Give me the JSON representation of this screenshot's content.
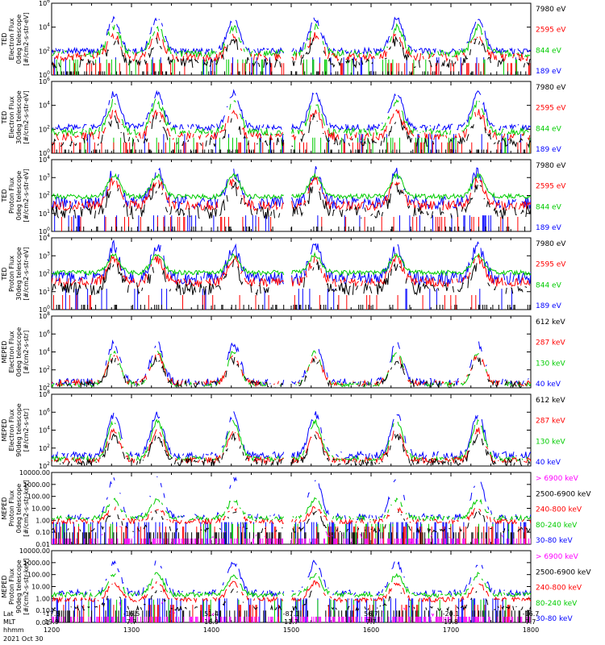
{
  "chart_data": [
    {
      "type": "line",
      "log_y": true,
      "ylabel": [
        "TED",
        "Electron Flux",
        "0deg telescope",
        "[#/cm2-s-str-eV]"
      ],
      "yticks": [
        "10^6",
        "10^4",
        "10^2",
        "10^0"
      ],
      "ylim": [
        1,
        1000000
      ],
      "legend": [
        {
          "name": "7980 eV",
          "color": "#000000"
        },
        {
          "name": "2595 eV",
          "color": "#ff0000"
        },
        {
          "name": "844 eV",
          "color": "#00cc00"
        },
        {
          "name": "189 eV",
          "color": "#0000ff"
        }
      ],
      "series": [
        {
          "name": "189 eV",
          "color": "#0000ff",
          "base": 100,
          "peak": 50000,
          "floor": 30,
          "noise": 0.5,
          "dropout": 0.12
        },
        {
          "name": "844 eV",
          "color": "#00cc00",
          "base": 60,
          "peak": 10000,
          "floor": 20,
          "noise": 0.6,
          "dropout": 0.18
        },
        {
          "name": "2595 eV",
          "color": "#ff0000",
          "base": 30,
          "peak": 2000,
          "floor": 10,
          "noise": 0.7,
          "dropout": 0.25
        },
        {
          "name": "7980 eV",
          "color": "#000000",
          "base": 10,
          "peak": 700,
          "floor": 2,
          "noise": 0.8,
          "dropout": 0.35
        }
      ]
    },
    {
      "type": "line",
      "log_y": true,
      "ylabel": [
        "TED",
        "Electron Flux",
        "30deg telescope",
        "[#/cm2-s-str-eV]"
      ],
      "yticks": [
        "10^6",
        "10^4",
        "10^2",
        "10^0"
      ],
      "ylim": [
        1,
        1000000
      ],
      "legend": [
        {
          "name": "7980 eV",
          "color": "#000000"
        },
        {
          "name": "2595 eV",
          "color": "#ff0000"
        },
        {
          "name": "844 eV",
          "color": "#00cc00"
        },
        {
          "name": "189 eV",
          "color": "#0000ff"
        }
      ],
      "series": [
        {
          "name": "189 eV",
          "color": "#0000ff",
          "base": 150,
          "peak": 100000,
          "floor": 40,
          "noise": 0.5,
          "dropout": 0.1
        },
        {
          "name": "844 eV",
          "color": "#00cc00",
          "base": 60,
          "peak": 20000,
          "floor": 20,
          "noise": 0.6,
          "dropout": 0.18
        },
        {
          "name": "2595 eV",
          "color": "#ff0000",
          "base": 25,
          "peak": 3000,
          "floor": 8,
          "noise": 0.7,
          "dropout": 0.28
        },
        {
          "name": "7980 eV",
          "color": "#000000",
          "base": 8,
          "peak": 800,
          "floor": 2,
          "noise": 0.8,
          "dropout": 0.38
        }
      ]
    },
    {
      "type": "line",
      "log_y": true,
      "ylabel": [
        "TED",
        "Proton Flux",
        "0deg telescope",
        "[#/cm2-s-str-eV]"
      ],
      "yticks": [
        "10^4",
        "10^3",
        "10^2",
        "10^1",
        "10^0"
      ],
      "ylim": [
        1,
        30000
      ],
      "legend": [
        {
          "name": "7980 eV",
          "color": "#000000"
        },
        {
          "name": "2595 eV",
          "color": "#ff0000"
        },
        {
          "name": "844 eV",
          "color": "#00cc00"
        },
        {
          "name": "189 eV",
          "color": "#0000ff"
        }
      ],
      "series": [
        {
          "name": "189 eV",
          "color": "#0000ff",
          "base": 60,
          "peak": 5000,
          "floor": 10,
          "noise": 0.8,
          "dropout": 0.15
        },
        {
          "name": "844 eV",
          "color": "#00cc00",
          "base": 150,
          "peak": 3000,
          "floor": 60,
          "noise": 0.3,
          "dropout": 0.0
        },
        {
          "name": "2595 eV",
          "color": "#ff0000",
          "base": 40,
          "peak": 1500,
          "floor": 8,
          "noise": 0.6,
          "dropout": 0.15
        },
        {
          "name": "7980 eV",
          "color": "#000000",
          "base": 15,
          "peak": 600,
          "floor": 2,
          "noise": 0.8,
          "dropout": 0.3
        }
      ]
    },
    {
      "type": "line",
      "log_y": true,
      "ylabel": [
        "TED",
        "Proton Flux",
        "30deg telescope",
        "[#/cm2-s-str-eV]"
      ],
      "yticks": [
        "10^4",
        "10^3",
        "10^2",
        "10^1",
        "10^0"
      ],
      "ylim": [
        1,
        30000
      ],
      "legend": [
        {
          "name": "7980 eV",
          "color": "#000000"
        },
        {
          "name": "2595 eV",
          "color": "#ff0000"
        },
        {
          "name": "844 eV",
          "color": "#00cc00"
        },
        {
          "name": "189 eV",
          "color": "#0000ff"
        }
      ],
      "series": [
        {
          "name": "189 eV",
          "color": "#0000ff",
          "base": 90,
          "peak": 8000,
          "floor": 20,
          "noise": 0.8,
          "dropout": 0.1
        },
        {
          "name": "844 eV",
          "color": "#00cc00",
          "base": 200,
          "peak": 2500,
          "floor": 80,
          "noise": 0.3,
          "dropout": 0.0
        },
        {
          "name": "2595 eV",
          "color": "#ff0000",
          "base": 50,
          "peak": 1500,
          "floor": 8,
          "noise": 0.6,
          "dropout": 0.15
        },
        {
          "name": "7980 eV",
          "color": "#000000",
          "base": 20,
          "peak": 600,
          "floor": 2,
          "noise": 0.8,
          "dropout": 0.3
        }
      ]
    },
    {
      "type": "line",
      "log_y": true,
      "ylabel": [
        "MEPED",
        "Electron Flux",
        "0deg telescope",
        "[#/cm2-s-str]"
      ],
      "yticks": [
        "10^8",
        "10^6",
        "10^4",
        "10^2",
        "10^2"
      ],
      "ylim": [
        100,
        100000000
      ],
      "legend": [
        {
          "name": "612 keV",
          "color": "#000000"
        },
        {
          "name": "287 keV",
          "color": "#ff0000"
        },
        {
          "name": "130 keV",
          "color": "#00cc00"
        },
        {
          "name": "40 keV",
          "color": "#0000ff"
        }
      ],
      "series": [
        {
          "name": "40 keV",
          "color": "#0000ff",
          "base": 300,
          "peak": 500000,
          "floor": 100,
          "noise": 0.6,
          "dropout": 0.3
        },
        {
          "name": "130 keV",
          "color": "#00cc00",
          "base": 200,
          "peak": 100000,
          "floor": 100,
          "noise": 0.4,
          "dropout": 0.3
        },
        {
          "name": "287 keV",
          "color": "#ff0000",
          "base": 250,
          "peak": 50000,
          "floor": 100,
          "noise": 0.5,
          "dropout": 0.3
        },
        {
          "name": "612 keV",
          "color": "#000000",
          "base": 200,
          "peak": 20000,
          "floor": 100,
          "noise": 0.6,
          "dropout": 0.4
        }
      ]
    },
    {
      "type": "line",
      "log_y": true,
      "ylabel": [
        "MEPED",
        "Electron Flux",
        "90deg telescope",
        "[#/cm2-s-str]"
      ],
      "yticks": [
        "10^8",
        "10^6",
        "10^4",
        "10^2",
        "10^2"
      ],
      "ylim": [
        100,
        100000000
      ],
      "legend": [
        {
          "name": "612 keV",
          "color": "#000000"
        },
        {
          "name": "287 keV",
          "color": "#ff0000"
        },
        {
          "name": "130 keV",
          "color": "#00cc00"
        },
        {
          "name": "40 keV",
          "color": "#0000ff"
        }
      ],
      "series": [
        {
          "name": "40 keV",
          "color": "#0000ff",
          "base": 800,
          "peak": 2000000,
          "floor": 100,
          "noise": 0.6,
          "dropout": 0.15
        },
        {
          "name": "130 keV",
          "color": "#00cc00",
          "base": 400,
          "peak": 500000,
          "floor": 100,
          "noise": 0.4,
          "dropout": 0.15
        },
        {
          "name": "287 keV",
          "color": "#ff0000",
          "base": 300,
          "peak": 100000,
          "floor": 100,
          "noise": 0.5,
          "dropout": 0.2
        },
        {
          "name": "612 keV",
          "color": "#000000",
          "base": 200,
          "peak": 30000,
          "floor": 100,
          "noise": 0.6,
          "dropout": 0.3
        }
      ]
    },
    {
      "type": "line",
      "log_y": true,
      "ylabel": [
        "MEPED",
        "Proton Flux",
        "0deg telescope",
        "[#/cm2-s-str-keV]"
      ],
      "yticks": [
        "10000.00",
        "1000.00",
        "100.00",
        "10.00",
        "1.00",
        "0.10",
        "0.01"
      ],
      "ylim": [
        0.01,
        10000
      ],
      "legend": [
        {
          "name": "> 6900 keV",
          "color": "#ff00ff"
        },
        {
          "name": "2500-6900 keV",
          "color": "#000000"
        },
        {
          "name": "240-800 keV",
          "color": "#ff0000"
        },
        {
          "name": "80-240 keV",
          "color": "#00cc00"
        },
        {
          "name": "30-80 keV",
          "color": "#0000ff"
        }
      ],
      "series": [
        {
          "name": "30-80 keV",
          "color": "#0000ff",
          "base": 2,
          "peak": 3000,
          "floor": 0.7,
          "noise": 0.5,
          "dropout": 0.4
        },
        {
          "name": "80-240 keV",
          "color": "#00cc00",
          "base": 1.5,
          "peak": 50,
          "floor": 0.5,
          "noise": 0.4,
          "dropout": 0.2
        },
        {
          "name": "240-800 keV",
          "color": "#ff0000",
          "base": 0.8,
          "peak": 10,
          "floor": 0.3,
          "noise": 0.4,
          "dropout": 0.25
        },
        {
          "name": "2500-6900 keV",
          "color": "#000000",
          "base": 0.15,
          "peak": 5,
          "floor": 0.1,
          "noise": 0.4,
          "dropout": 0.5
        },
        {
          "name": "> 6900 keV",
          "color": "#ff00ff",
          "base": 0.05,
          "peak": 1,
          "floor": 0.03,
          "noise": 0.4,
          "dropout": 0.8
        }
      ]
    },
    {
      "type": "line",
      "log_y": true,
      "ylabel": [
        "MEPED",
        "Proton Flux",
        "90deg telescope",
        "[#/cm2-s-str-keV]"
      ],
      "yticks": [
        "10000.00",
        "1000.00",
        "100.00",
        "10.00",
        "1.00",
        "0.10",
        "0.01"
      ],
      "ylim": [
        0.01,
        10000
      ],
      "legend": [
        {
          "name": "> 6900 keV",
          "color": "#ff00ff"
        },
        {
          "name": "2500-6900 keV",
          "color": "#000000"
        },
        {
          "name": "240-800 keV",
          "color": "#ff0000"
        },
        {
          "name": "80-240 keV",
          "color": "#00cc00"
        },
        {
          "name": "30-80 keV",
          "color": "#0000ff"
        }
      ],
      "series": [
        {
          "name": "30-80 keV",
          "color": "#0000ff",
          "base": 3,
          "peak": 1000,
          "floor": 1,
          "noise": 0.5,
          "dropout": 0.3
        },
        {
          "name": "80-240 keV",
          "color": "#00cc00",
          "base": 2,
          "peak": 100,
          "floor": 0.8,
          "noise": 0.4,
          "dropout": 0.1
        },
        {
          "name": "240-800 keV",
          "color": "#ff0000",
          "base": 0.8,
          "peak": 20,
          "floor": 0.3,
          "noise": 0.4,
          "dropout": 0.2
        },
        {
          "name": "2500-6900 keV",
          "color": "#000000",
          "base": 0.15,
          "peak": 5,
          "floor": 0.1,
          "noise": 0.4,
          "dropout": 0.5
        },
        {
          "name": "> 6900 keV",
          "color": "#ff00ff",
          "base": 0.05,
          "peak": 1,
          "floor": 0.03,
          "noise": 0.4,
          "dropout": 0.8
        }
      ]
    }
  ],
  "x_axis": {
    "time_range": [
      "12:00",
      "18:00"
    ],
    "row_labels": [
      "Lat",
      "MLT",
      "hhmm"
    ],
    "columns": [
      {
        "lat": "-17.5",
        "mlt": "19.9",
        "hhmm": "1200"
      },
      {
        "lat": "-16.5",
        "mlt": "7.7",
        "hhmm": "1300"
      },
      {
        "lat": "51.4",
        "mlt": "16.9",
        "hhmm": "1400"
      },
      {
        "lat": "-87.1",
        "mlt": "11.7",
        "hhmm": "1500"
      },
      {
        "lat": "56.7",
        "mlt": "7.7",
        "hhmm": "1600"
      },
      {
        "lat": "-20.1",
        "mlt": "19.8",
        "hhmm": "1700"
      },
      {
        "lat": "-16.7",
        "mlt": "7.7",
        "hhmm": "1800"
      }
    ],
    "date": "2021 Oct 30"
  },
  "events": {
    "crossings": [
      0.13,
      0.22,
      0.38,
      0.55,
      0.72,
      0.89
    ],
    "radiation_belt": [
      0.225
    ],
    "gap": [
      0.485,
      0.5
    ]
  }
}
